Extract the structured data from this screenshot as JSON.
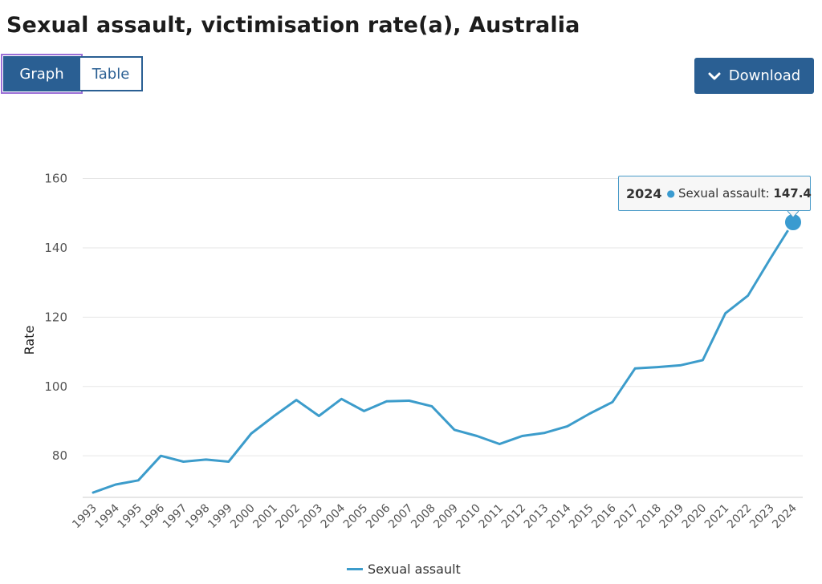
{
  "page": {
    "title": "Sexual assault, victimisation rate(a), Australia"
  },
  "toolbar": {
    "tabs": [
      {
        "label": "Graph",
        "selected": true
      },
      {
        "label": "Table",
        "selected": false
      }
    ],
    "download_label": "Download",
    "download_icon": "chevron-down-icon"
  },
  "tooltip": {
    "year": "2024",
    "series": "Sexual assault:",
    "value": "147.4"
  },
  "legend": {
    "label": "Sexual assault"
  },
  "colors": {
    "accent": "#2a5f93",
    "series": "#3c9ccb",
    "selection_outline": "#9b6fd6"
  },
  "chart_data": {
    "type": "line",
    "title": "Sexual assault, victimisation rate(a), Australia",
    "xlabel": "",
    "ylabel": "Rate",
    "ylim": [
      68,
      168
    ],
    "yticks": [
      80,
      100,
      120,
      140,
      160
    ],
    "grid": true,
    "legend_position": "bottom",
    "categories": [
      "1993",
      "1994",
      "1995",
      "1996",
      "1997",
      "1998",
      "1999",
      "2000",
      "2001",
      "2002",
      "2003",
      "2004",
      "2005",
      "2006",
      "2007",
      "2008",
      "2009",
      "2010",
      "2011",
      "2012",
      "2013",
      "2014",
      "2015",
      "2016",
      "2017",
      "2018",
      "2019",
      "2020",
      "2021",
      "2022",
      "2023",
      "2024"
    ],
    "series": [
      {
        "name": "Sexual assault",
        "values": [
          69.4,
          71.7,
          72.9,
          80.0,
          78.3,
          78.9,
          78.3,
          86.4,
          91.4,
          96.1,
          91.5,
          96.4,
          92.9,
          95.7,
          95.9,
          94.3,
          87.5,
          85.7,
          83.4,
          85.7,
          86.6,
          88.5,
          92.2,
          95.5,
          105.2,
          105.6,
          106.1,
          107.6,
          121.1,
          126.2,
          137.0,
          147.4
        ]
      }
    ],
    "highlighted_point": {
      "x": "2024",
      "y": 147.4
    }
  }
}
